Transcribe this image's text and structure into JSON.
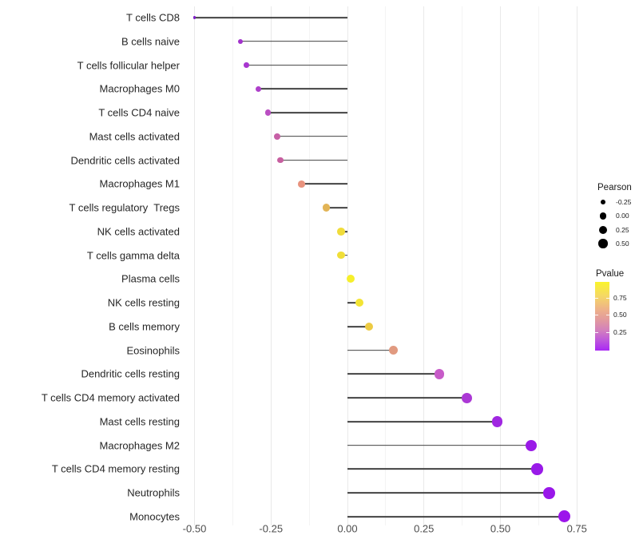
{
  "chart_data": {
    "type": "lollipop",
    "orientation": "horizontal",
    "title": "",
    "xlabel": "",
    "ylabel": "",
    "baseline": 0,
    "xlim": [
      -0.53,
      0.81
    ],
    "x_tick_values": [
      -0.5,
      -0.25,
      0,
      0.25,
      0.5,
      0.75
    ],
    "x_tick_labels": [
      "-0.50",
      "-0.25",
      "0.00",
      "0.25",
      "0.50",
      "0.75"
    ],
    "x_minor_values": [
      -0.375,
      -0.125,
      0.125,
      0.375,
      0.625
    ],
    "grid": "vertical-only",
    "rows": [
      {
        "label": "T cells CD8",
        "pearson": -0.5,
        "color": "#7E1DC8"
      },
      {
        "label": "B cells naive",
        "pearson": -0.35,
        "color": "#A232CC"
      },
      {
        "label": "T cells follicular helper",
        "pearson": -0.33,
        "color": "#A836D0"
      },
      {
        "label": "Macrophages M0",
        "pearson": -0.29,
        "color": "#AE40CA"
      },
      {
        "label": "T cells CD4 naive",
        "pearson": -0.26,
        "color": "#BA4EC2"
      },
      {
        "label": "Mast cells activated",
        "pearson": -0.23,
        "color": "#C760A6"
      },
      {
        "label": "Dendritic cells activated",
        "pearson": -0.22,
        "color": "#C75FA0"
      },
      {
        "label": "Macrophages M1",
        "pearson": -0.15,
        "color": "#E8937E"
      },
      {
        "label": "T cells regulatory  Tregs",
        "pearson": -0.07,
        "color": "#E2B456"
      },
      {
        "label": "NK cells activated",
        "pearson": -0.02,
        "color": "#F0DC3A"
      },
      {
        "label": "T cells gamma delta",
        "pearson": -0.02,
        "color": "#F0DE37"
      },
      {
        "label": "Plasma cells",
        "pearson": 0.01,
        "color": "#F6EF2B"
      },
      {
        "label": "NK cells resting",
        "pearson": 0.04,
        "color": "#F3E434"
      },
      {
        "label": "B cells memory",
        "pearson": 0.07,
        "color": "#EDCB43"
      },
      {
        "label": "Eosinophils",
        "pearson": 0.15,
        "color": "#E19A80"
      },
      {
        "label": "Dendritic cells resting",
        "pearson": 0.3,
        "color": "#C75BC8"
      },
      {
        "label": "T cells CD4 memory activated",
        "pearson": 0.39,
        "color": "#AB38D5"
      },
      {
        "label": "Mast cells resting",
        "pearson": 0.49,
        "color": "#A027E1"
      },
      {
        "label": "Macrophages M2",
        "pearson": 0.6,
        "color": "#9A1AE7"
      },
      {
        "label": "T cells CD4 memory resting",
        "pearson": 0.62,
        "color": "#991AE8"
      },
      {
        "label": "Neutrophils",
        "pearson": 0.66,
        "color": "#9917E9"
      },
      {
        "label": "Monocytes",
        "pearson": 0.71,
        "color": "#9C15EB"
      }
    ],
    "legend_size": {
      "title": "Pearson",
      "items": [
        {
          "label": "-0.25",
          "radius": 3.3
        },
        {
          "label": "0.00",
          "radius": 4.3
        },
        {
          "label": "0.25",
          "radius": 5.0
        },
        {
          "label": "0.50",
          "radius": 5.7
        }
      ],
      "swatch_color": "#000000"
    },
    "legend_color": {
      "title": "Pvalue",
      "tick_labels": [
        "0.75",
        "0.50",
        "0.25"
      ],
      "tick_values": [
        0.75,
        0.5,
        0.25
      ],
      "gradient_top_color": "#FAF42B",
      "gradient_mid_color": "#E29A9D",
      "gradient_bottom_color": "#A928F4"
    },
    "style": {
      "background": "#ffffff",
      "grid_major_color": "#e9e9e9",
      "grid_minor_color": "#f4f4f4",
      "stem_color": "#404040",
      "axis_text_color": "#4d4d4d",
      "label_text_color": "#262626"
    }
  }
}
